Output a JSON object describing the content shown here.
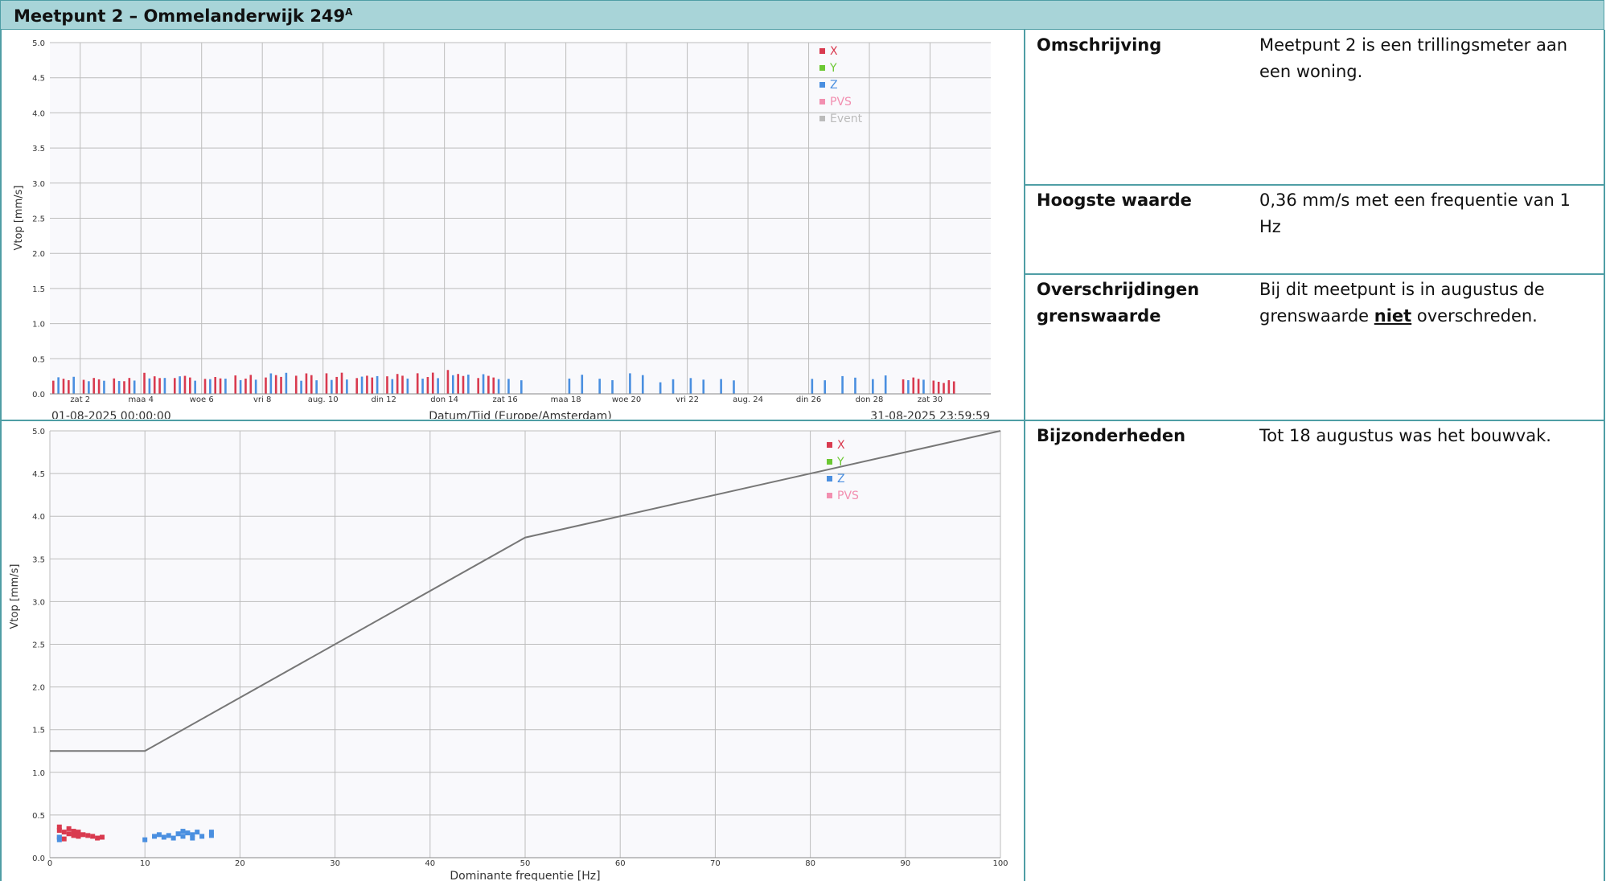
{
  "header": {
    "title": "Meetpunt 2 – Ommelanderwijk 249",
    "superscript": "A"
  },
  "info": [
    {
      "label": "Omschrijving",
      "value": "Meetpunt 2 is een trillingsmeter aan een woning."
    },
    {
      "label": "Hoogste waarde",
      "value": "0,36 mm/s met een frequentie van 1 Hz"
    },
    {
      "label_line1": "Overschrijdingen",
      "label_line2": "grenswaarde",
      "value_pre": "Bij dit meetpunt is in augustus de grenswaarde ",
      "value_strong": "niet",
      "value_post": " overschreden."
    },
    {
      "label": "Bijzonderheden",
      "value": "Tot 18 augustus was het bouwvak."
    }
  ],
  "colors": {
    "X": "#d93a4f",
    "Y": "#6cc833",
    "Z": "#4a8fe0",
    "PVS": "#f28fb0",
    "Event": "#bbbbbb"
  },
  "chart_data": [
    {
      "type": "bar",
      "ylabel": "Vtop [mm/s]",
      "xlabel": "Datum/Tijd (Europe/Amsterdam)",
      "start_label": "01-08-2025 00:00:00",
      "end_label": "31-08-2025 23:59:59",
      "ylim": [
        0,
        5
      ],
      "yticks": [
        "0.0",
        "0.5",
        "1.0",
        "1.5",
        "2.0",
        "2.5",
        "3.0",
        "3.5",
        "4.0",
        "4.5",
        "5.0"
      ],
      "xtick_labels": [
        "zat 2",
        "maa 4",
        "woe 6",
        "vri 8",
        "aug. 10",
        "din 12",
        "don 14",
        "zat 16",
        "maa 18",
        "woe 20",
        "vri 22",
        "aug. 24",
        "din 26",
        "don 28",
        "zat 30"
      ],
      "legend": [
        "X",
        "Y",
        "Z",
        "PVS",
        "Event"
      ],
      "legend_position": "top-right",
      "grid": true,
      "daily_max": [
        {
          "date": "2025-08-01",
          "X": 0.25,
          "Z": 0.25
        },
        {
          "date": "2025-08-02",
          "X": 0.24,
          "Z": 0.24
        },
        {
          "date": "2025-08-03",
          "X": 0.24,
          "Z": 0.22
        },
        {
          "date": "2025-08-04",
          "X": 0.3,
          "Z": 0.24
        },
        {
          "date": "2025-08-05",
          "X": 0.28,
          "Z": 0.25
        },
        {
          "date": "2025-08-06",
          "X": 0.24,
          "Z": 0.26
        },
        {
          "date": "2025-08-07",
          "X": 0.27,
          "Z": 0.22
        },
        {
          "date": "2025-08-08",
          "X": 0.3,
          "Z": 0.3
        },
        {
          "date": "2025-08-09",
          "X": 0.3,
          "Z": 0.24
        },
        {
          "date": "2025-08-10",
          "X": 0.31,
          "Z": 0.23
        },
        {
          "date": "2025-08-11",
          "X": 0.3,
          "Z": 0.26
        },
        {
          "date": "2025-08-12",
          "X": 0.3,
          "Z": 0.28
        },
        {
          "date": "2025-08-13",
          "X": 0.32,
          "Z": 0.26
        },
        {
          "date": "2025-08-14",
          "X": 0.34,
          "Z": 0.29
        },
        {
          "date": "2025-08-15",
          "X": 0.28,
          "Z": 0.28
        },
        {
          "date": "2025-08-16",
          "Z": 0.24
        },
        {
          "date": "2025-08-18",
          "Z": 0.28
        },
        {
          "date": "2025-08-19",
          "Z": 0.25
        },
        {
          "date": "2025-08-20",
          "Z": 0.31
        },
        {
          "date": "2025-08-21",
          "Z": 0.22
        },
        {
          "date": "2025-08-22",
          "Z": 0.27
        },
        {
          "date": "2025-08-23",
          "Z": 0.23
        },
        {
          "date": "2025-08-26",
          "Z": 0.24
        },
        {
          "date": "2025-08-27",
          "Z": 0.26
        },
        {
          "date": "2025-08-28",
          "Z": 0.27
        },
        {
          "date": "2025-08-29",
          "X": 0.24,
          "Z": 0.25
        },
        {
          "date": "2025-08-30",
          "X": 0.2
        }
      ]
    },
    {
      "type": "scatter",
      "ylabel": "Vtop [mm/s]",
      "xlabel": "Dominante frequentie [Hz]",
      "xlim": [
        0,
        100
      ],
      "ylim": [
        0,
        5
      ],
      "xticks": [
        0,
        10,
        20,
        30,
        40,
        50,
        60,
        70,
        80,
        90,
        100
      ],
      "yticks": [
        "0.0",
        "0.5",
        "1.0",
        "1.5",
        "2.0",
        "2.5",
        "3.0",
        "3.5",
        "4.0",
        "4.5",
        "5.0"
      ],
      "legend": [
        "X",
        "Y",
        "Z",
        "PVS"
      ],
      "legend_position": "top-right",
      "grid": true,
      "limit_line": {
        "x": [
          0,
          10,
          50,
          100
        ],
        "y": [
          1.25,
          1.25,
          3.75,
          5.0
        ]
      },
      "series": [
        {
          "name": "X",
          "points": [
            [
              1,
              0.36
            ],
            [
              1,
              0.32
            ],
            [
              1.5,
              0.3
            ],
            [
              2,
              0.34
            ],
            [
              2,
              0.28
            ],
            [
              2.5,
              0.31
            ],
            [
              3,
              0.3
            ],
            [
              3.5,
              0.27
            ],
            [
              4,
              0.26
            ],
            [
              4.5,
              0.25
            ],
            [
              5,
              0.23
            ],
            [
              5.5,
              0.24
            ],
            [
              1,
              0.24
            ],
            [
              1.5,
              0.22
            ],
            [
              2.5,
              0.26
            ],
            [
              3,
              0.25
            ]
          ]
        },
        {
          "name": "Z",
          "points": [
            [
              1,
              0.24
            ],
            [
              1,
              0.21
            ],
            [
              10,
              0.21
            ],
            [
              11,
              0.25
            ],
            [
              11.5,
              0.27
            ],
            [
              12,
              0.24
            ],
            [
              12.5,
              0.26
            ],
            [
              13,
              0.23
            ],
            [
              13.5,
              0.28
            ],
            [
              14,
              0.31
            ],
            [
              14,
              0.25
            ],
            [
              14.5,
              0.29
            ],
            [
              15,
              0.27
            ],
            [
              15,
              0.23
            ],
            [
              15.5,
              0.3
            ],
            [
              16,
              0.25
            ],
            [
              17,
              0.26
            ],
            [
              17,
              0.3
            ]
          ]
        }
      ]
    }
  ]
}
